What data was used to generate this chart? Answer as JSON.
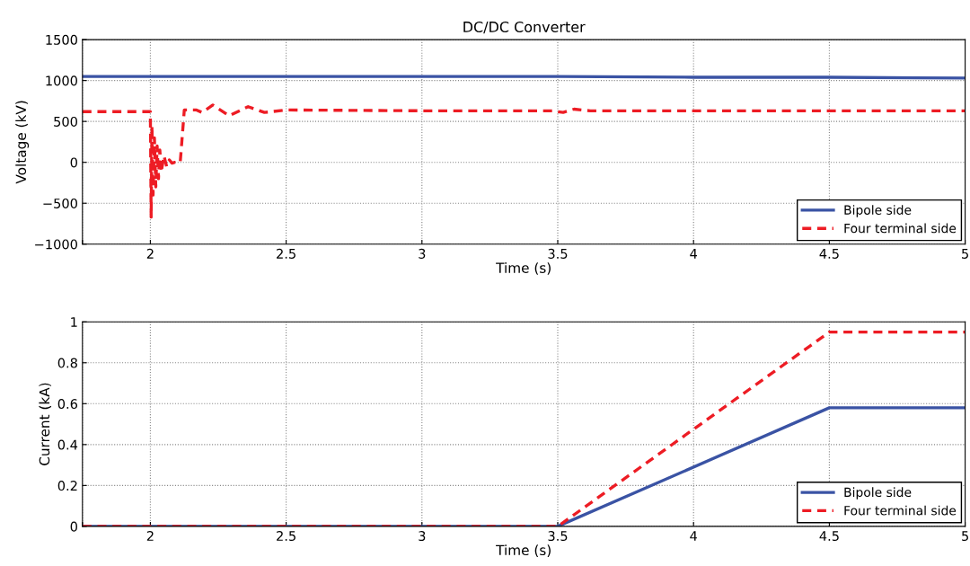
{
  "chart_data": [
    {
      "type": "line",
      "title": "DC/DC Converter",
      "xlabel": "Time (s)",
      "ylabel": "Voltage (kV)",
      "xlim": [
        1.75,
        5
      ],
      "xticks": [
        {
          "value": 1.75,
          "label": null
        },
        2,
        2.5,
        3,
        3.5,
        4,
        4.5,
        5
      ],
      "ylim": [
        -1000,
        1500
      ],
      "yticks": [
        {
          "value": -1000,
          "label": "−1000"
        },
        {
          "value": -500,
          "label": "−500"
        },
        0,
        500,
        1000,
        1500
      ],
      "grid": true,
      "legend": "bottom right",
      "series": [
        {
          "name": "Bipole side",
          "color": "#3a53a4",
          "line_style": "solid",
          "x": [
            1.75,
            2.0,
            2.5,
            3.0,
            3.5,
            4.0,
            4.5,
            5.0
          ],
          "values": [
            1050,
            1050,
            1050,
            1050,
            1050,
            1040,
            1040,
            1030
          ]
        },
        {
          "name": "Four terminal side",
          "color": "#ed1c24",
          "line_style": "dashed",
          "x": [
            1.75,
            2.0,
            2.003,
            2.006,
            2.01,
            2.015,
            2.02,
            2.025,
            2.03,
            2.035,
            2.04,
            2.05,
            2.06,
            2.07,
            2.08,
            2.09,
            2.11,
            2.125,
            2.17,
            2.19,
            2.23,
            2.29,
            2.36,
            2.42,
            2.5,
            3.0,
            3.48,
            3.52,
            3.56,
            3.62,
            4.0,
            4.5,
            5.0
          ],
          "values": [
            620,
            620,
            -670,
            450,
            -400,
            300,
            -300,
            200,
            -200,
            150,
            -120,
            80,
            -50,
            30,
            -10,
            0,
            0,
            640,
            640,
            610,
            700,
            570,
            680,
            610,
            640,
            630,
            630,
            610,
            650,
            630,
            630,
            630,
            630
          ]
        }
      ]
    },
    {
      "type": "line",
      "xlabel": "Time (s)",
      "ylabel": "Current (kA)",
      "xlim": [
        1.75,
        5
      ],
      "xticks": [
        {
          "value": 1.75,
          "label": null
        },
        2,
        2.5,
        3,
        3.5,
        4,
        4.5,
        5
      ],
      "ylim": [
        0,
        1
      ],
      "yticks": [
        0,
        0.2,
        0.4,
        0.6,
        0.8,
        1
      ],
      "grid": true,
      "legend": "bottom right",
      "series": [
        {
          "name": "Bipole side",
          "color": "#3a53a4",
          "line_style": "solid",
          "x": [
            1.75,
            3.5,
            4.5,
            5.0
          ],
          "values": [
            0,
            0,
            0.58,
            0.58
          ]
        },
        {
          "name": "Four terminal side",
          "color": "#ed1c24",
          "line_style": "dashed",
          "x": [
            1.75,
            3.5,
            4.5,
            5.0
          ],
          "values": [
            0,
            0,
            0.95,
            0.95
          ]
        }
      ]
    }
  ]
}
